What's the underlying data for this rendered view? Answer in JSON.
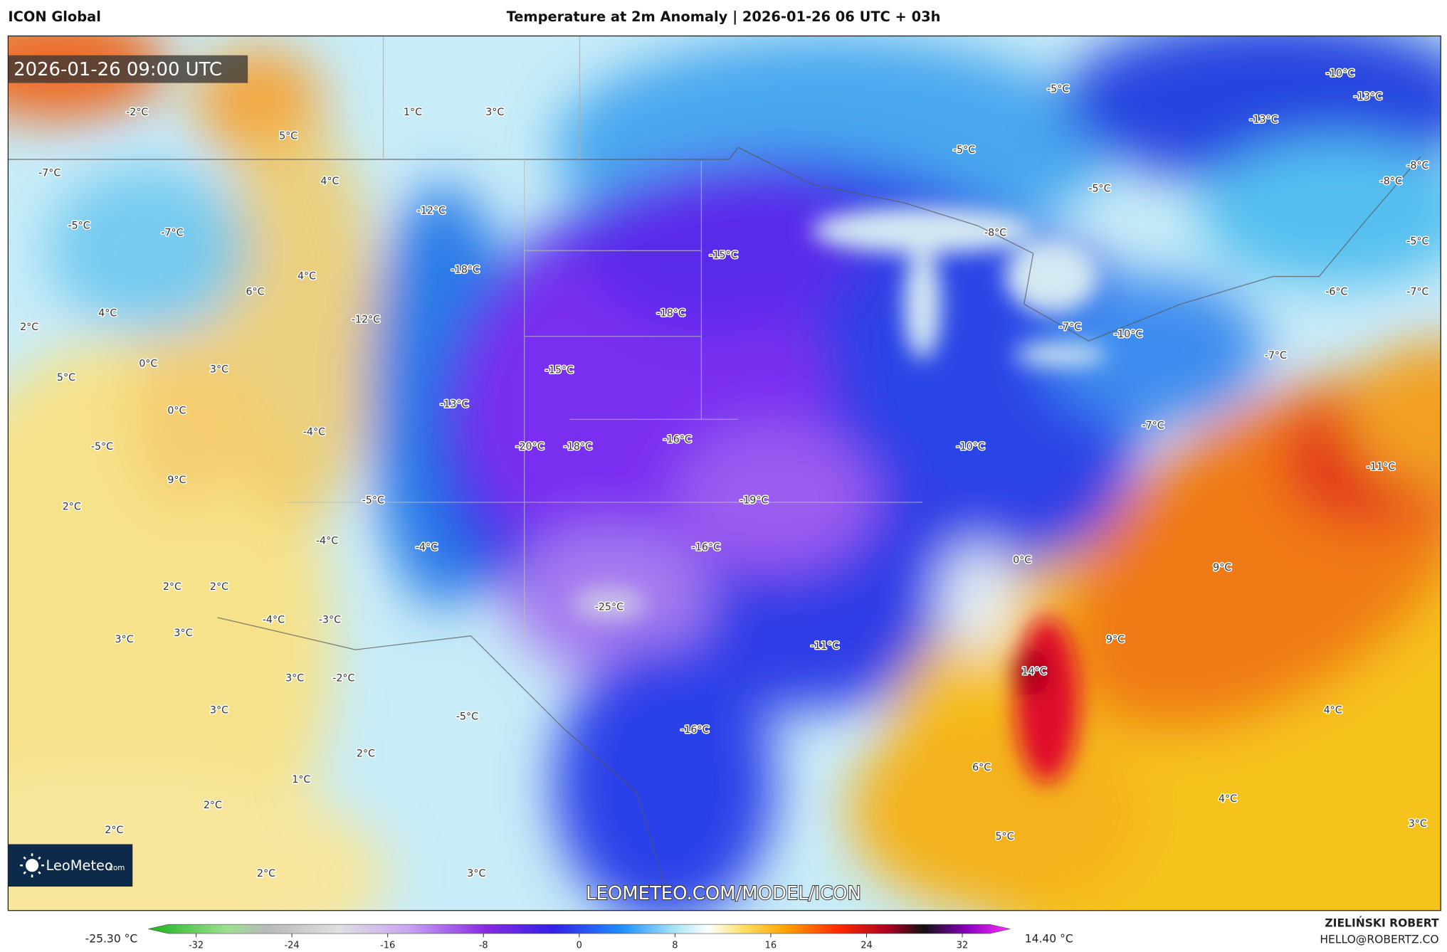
{
  "header": {
    "model": "ICON Global",
    "title": "Temperature at 2m Anomaly | 2026-01-26 06 UTC + 03h"
  },
  "map": {
    "timestamp": "2026-01-26 09:00 UTC",
    "labels": [
      "1°C",
      "3°C",
      "-2°C",
      "5°C",
      "-5°C",
      "-10°C",
      "-13°C",
      "-13°C",
      "-5°C",
      "-5°C",
      "-8°C",
      "-8°C",
      "4°C",
      "-12°C",
      "-7°C",
      "-5°C",
      "-7°C",
      "-8°C",
      "-5°C",
      "-15°C",
      "-18°C",
      "4°C",
      "6°C",
      "4°C",
      "-12°C",
      "-18°C",
      "-6°C",
      "-7°C",
      "2°C",
      "-7°C",
      "-10°C",
      "-7°C",
      "0°C",
      "3°C",
      "5°C",
      "-15°C",
      "-13°C",
      "0°C",
      "-4°C",
      "-16°C",
      "-20°C",
      "-18°C",
      "-10°C",
      "-7°C",
      "-5°C",
      "9°C",
      "-11°C",
      "2°C",
      "-5°C",
      "-19°C",
      "-4°C",
      "-4°C",
      "-16°C",
      "0°C",
      "9°C",
      "2°C",
      "2°C",
      "-25°C",
      "-3°C",
      "-4°C",
      "3°C",
      "3°C",
      "9°C",
      "-11°C",
      "14°C",
      "3°C",
      "-2°C",
      "3°C",
      "4°C",
      "-5°C",
      "-16°C",
      "6°C",
      "2°C",
      "1°C",
      "4°C",
      "2°C",
      "2°C",
      "3°C",
      "5°C",
      "2°C",
      "3°C"
    ],
    "watermark": "LEOMETEO.COM/MODEL/ICON",
    "logo": {
      "name": "LeoMeteo",
      "suffix": ".com"
    }
  },
  "colorbar": {
    "min_label": "-25.30 °C",
    "max_label": "14.40 °C",
    "lim": [
      -36,
      36
    ],
    "ticks": [
      -32,
      -24,
      -16,
      -8,
      0,
      8,
      16,
      24,
      32
    ]
  },
  "footer": {
    "author": "ZIELIŃSKI ROBERT",
    "email": "HELLO@ROBERTZ.CO"
  }
}
